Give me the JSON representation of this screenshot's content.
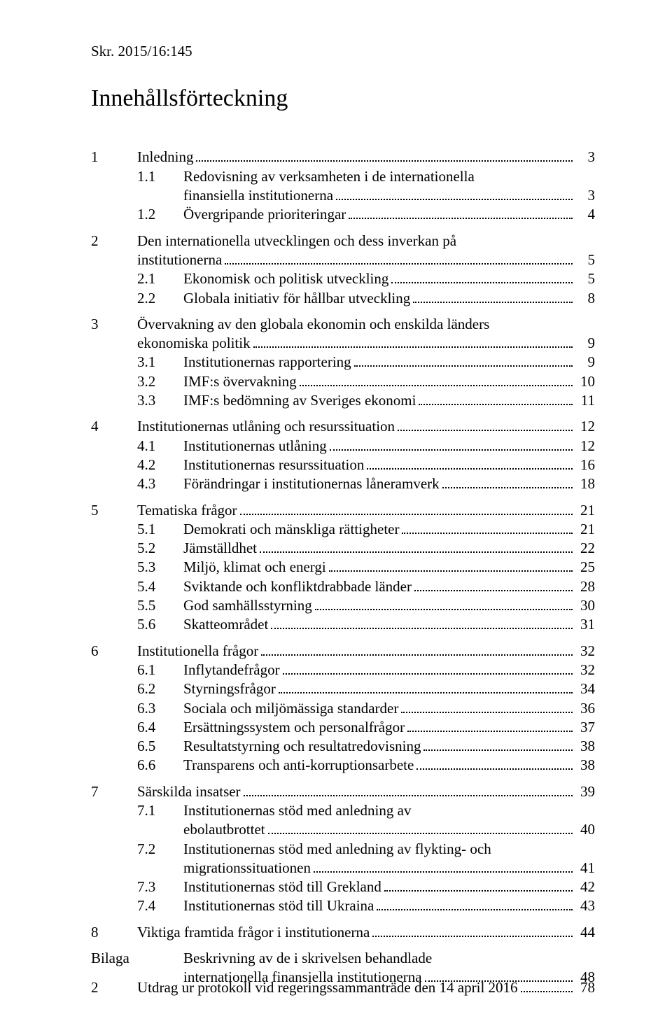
{
  "doc_ref": "Skr. 2015/16:145",
  "title": "Innehållsförteckning",
  "page_footer_num": "2",
  "footer": {
    "label": "Utdrag ur protokoll vid regeringssammanträde den 14 april 2016",
    "page": "78"
  },
  "toc": [
    {
      "n": "1",
      "t": "Inledning",
      "p": "3",
      "sub": [
        {
          "n": "1.1",
          "t": "Redovisning av verksamheten i de internationella",
          "t2": "finansiella institutionerna",
          "p": "3"
        },
        {
          "n": "1.2",
          "t": "Övergripande prioriteringar",
          "p": "4"
        }
      ]
    },
    {
      "n": "2",
      "t": "Den internationella utvecklingen och dess inverkan på",
      "t2": "institutionerna",
      "p": "5",
      "sub": [
        {
          "n": "2.1",
          "t": "Ekonomisk och politisk utveckling",
          "p": "5"
        },
        {
          "n": "2.2",
          "t": "Globala initiativ för hållbar utveckling",
          "p": "8"
        }
      ]
    },
    {
      "n": "3",
      "t": "Övervakning av den globala ekonomin och enskilda länders",
      "t2": "ekonomiska politik",
      "p": "9",
      "sub": [
        {
          "n": "3.1",
          "t": "Institutionernas rapportering",
          "p": "9"
        },
        {
          "n": "3.2",
          "t": "IMF:s övervakning",
          "p": "10"
        },
        {
          "n": "3.3",
          "t": "IMF:s bedömning av Sveriges ekonomi",
          "p": "11"
        }
      ]
    },
    {
      "n": "4",
      "t": "Institutionernas utlåning och resurssituation",
      "p": "12",
      "sub": [
        {
          "n": "4.1",
          "t": "Institutionernas utlåning",
          "p": "12"
        },
        {
          "n": "4.2",
          "t": "Institutionernas resurssituation",
          "p": "16"
        },
        {
          "n": "4.3",
          "t": "Förändringar i institutionernas låneramverk",
          "p": "18"
        }
      ]
    },
    {
      "n": "5",
      "t": "Tematiska frågor",
      "p": "21",
      "sub": [
        {
          "n": "5.1",
          "t": "Demokrati och mänskliga rättigheter",
          "p": "21"
        },
        {
          "n": "5.2",
          "t": "Jämställdhet",
          "p": "22"
        },
        {
          "n": "5.3",
          "t": "Miljö, klimat och energi",
          "p": "25"
        },
        {
          "n": "5.4",
          "t": "Sviktande och konfliktdrabbade länder",
          "p": "28"
        },
        {
          "n": "5.5",
          "t": "God samhällsstyrning",
          "p": "30"
        },
        {
          "n": "5.6",
          "t": "Skatteområdet",
          "p": "31"
        }
      ]
    },
    {
      "n": "6",
      "t": "Institutionella frågor",
      "p": "32",
      "sub": [
        {
          "n": "6.1",
          "t": "Inflytandefrågor",
          "p": "32"
        },
        {
          "n": "6.2",
          "t": "Styrningsfrågor",
          "p": "34"
        },
        {
          "n": "6.3",
          "t": "Sociala och miljömässiga standarder",
          "p": "36"
        },
        {
          "n": "6.4",
          "t": "Ersättningssystem och personalfrågor",
          "p": "37"
        },
        {
          "n": "6.5",
          "t": "Resultatstyrning och resultatredovisning",
          "p": "38"
        },
        {
          "n": "6.6",
          "t": "Transparens och anti-korruptionsarbete",
          "p": "38"
        }
      ]
    },
    {
      "n": "7",
      "t": "Särskilda insatser",
      "p": "39",
      "sub": [
        {
          "n": "7.1",
          "t": "Institutionernas stöd med anledning av",
          "t2": "ebolautbrottet",
          "p": "40"
        },
        {
          "n": "7.2",
          "t": "Institutionernas stöd med anledning av flykting- och",
          "t2": "migrationssituationen",
          "p": "41"
        },
        {
          "n": "7.3",
          "t": "Institutionernas stöd till Grekland",
          "p": "42"
        },
        {
          "n": "7.4",
          "t": "Institutionernas stöd till Ukraina",
          "p": "43"
        }
      ]
    },
    {
      "n": "8",
      "t": "Viktiga framtida frågor i institutionerna",
      "p": "44",
      "sub": []
    },
    {
      "n": "Bilaga",
      "t": "Beskrivning av de i skrivelsen behandlade",
      "t2": "internationella finansiella institutionerna",
      "p": "48",
      "bilaga": true,
      "sub": []
    }
  ]
}
